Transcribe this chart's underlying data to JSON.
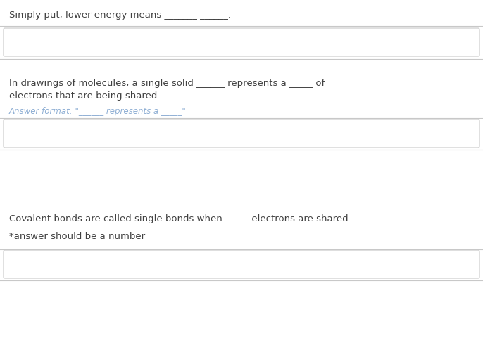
{
  "bg_color": "#ffffff",
  "text_color": "#404040",
  "hint_color": "#8fafd4",
  "box_border_color": "#c8c8c8",
  "q1_text": "Simply put, lower energy means _______ ______.",
  "q2_line1": "In drawings of molecules, a single solid ______ represents a _____ of",
  "q2_line2": "electrons that are being shared.",
  "q2_hint": "Answer format: \"______ represents a _____\"",
  "q3_line1": "Covalent bonds are called single bonds when _____ electrons are shared",
  "q3_line2": "*answer should be a number",
  "font_size_main": 9.5,
  "font_size_hint": 8.5,
  "fig_width": 6.86,
  "fig_height": 4.98,
  "dpi": 100
}
